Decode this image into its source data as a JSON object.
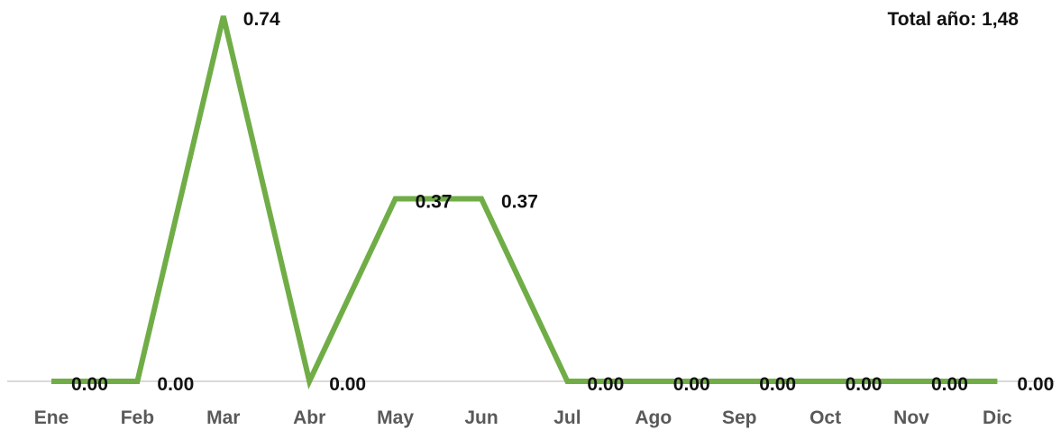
{
  "total": {
    "text": "Total año: 1,48"
  },
  "chart_data": {
    "type": "line",
    "categories": [
      "Ene",
      "Feb",
      "Mar",
      "Abr",
      "May",
      "Jun",
      "Jul",
      "Ago",
      "Sep",
      "Oct",
      "Nov",
      "Dic"
    ],
    "series": [
      {
        "values": [
          0.0,
          0.0,
          0.74,
          0.0,
          0.37,
          0.37,
          0.0,
          0.0,
          0.0,
          0.0,
          0.0,
          0.0
        ],
        "data_labels": [
          "0.00",
          "0.00",
          "0.74",
          "0.00",
          "0.37",
          "0.37",
          "0.00",
          "0.00",
          "0.00",
          "0.00",
          "0.00",
          "0.00"
        ]
      }
    ],
    "title": "",
    "xlabel": "",
    "ylabel": "",
    "ylim": [
      0,
      0.74
    ],
    "grid": false,
    "legend": "none",
    "colors": {
      "line": "#70ad47",
      "axis": "#d9d9d9",
      "tick_text": "#595959",
      "label_text": "#111111"
    }
  }
}
